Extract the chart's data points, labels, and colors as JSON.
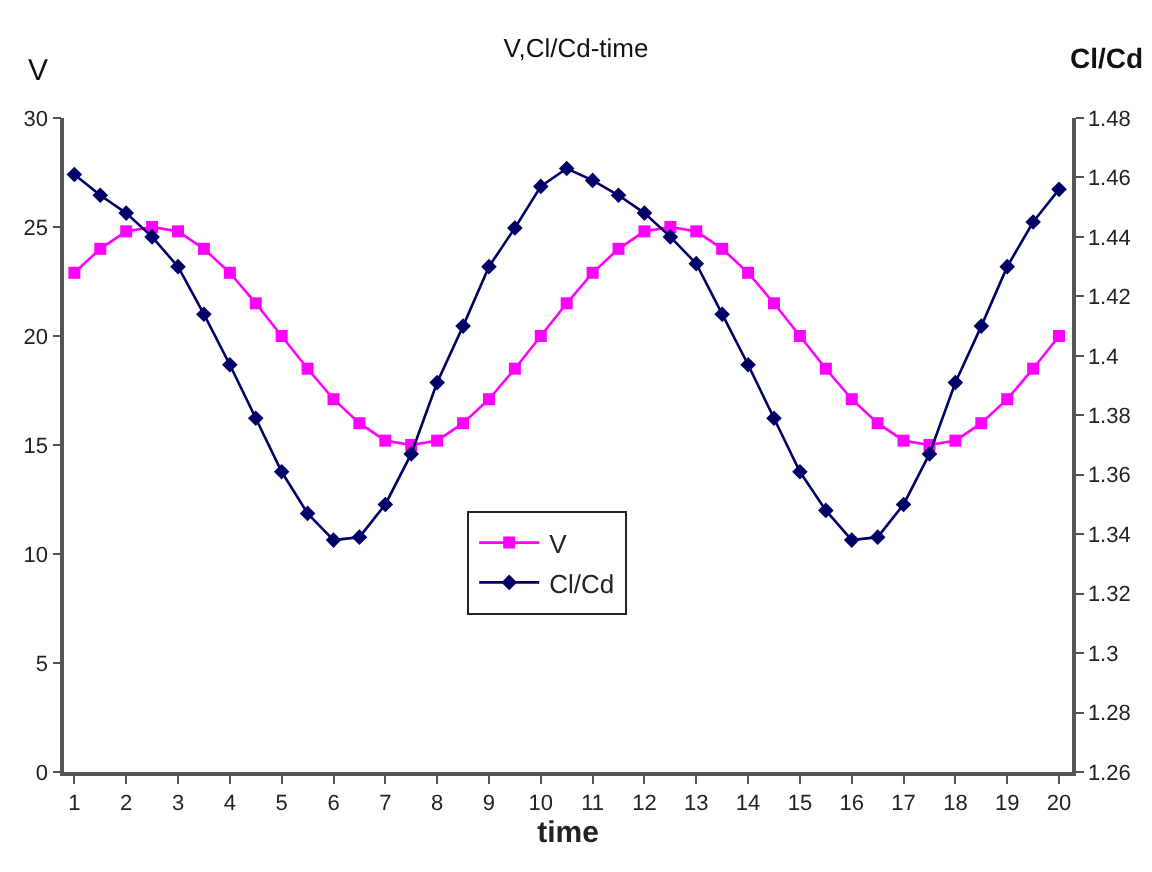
{
  "chart_data": {
    "type": "line",
    "title": "V,Cl/Cd-time",
    "xlabel": "time",
    "ylabel": "V",
    "y2label": "Cl/Cd",
    "x": [
      1,
      1.5,
      2,
      2.5,
      3,
      3.5,
      4,
      4.5,
      5,
      5.5,
      6,
      6.5,
      7,
      7.5,
      8,
      8.5,
      9,
      9.5,
      10,
      10.5,
      11,
      11.5,
      12,
      12.5,
      13,
      13.5,
      14,
      14.5,
      15,
      15.5,
      16,
      16.5,
      17,
      17.5,
      18,
      18.5,
      19,
      19.5,
      20
    ],
    "series": [
      {
        "name": "V",
        "color": "#ff00ff",
        "marker": "square",
        "values": [
          22.9,
          24.0,
          24.8,
          25.0,
          24.8,
          24.0,
          22.9,
          21.5,
          20.0,
          18.5,
          17.1,
          16.0,
          15.2,
          15.0,
          15.2,
          16.0,
          17.1,
          18.5,
          20.0,
          21.5,
          22.9,
          24.0,
          24.8,
          25.0,
          24.8,
          24.0,
          22.9,
          21.5,
          20.0,
          18.5,
          17.1,
          16.0,
          15.2,
          15.0,
          15.2,
          16.0,
          17.1,
          18.5,
          20.0
        ]
      },
      {
        "name": "Cl/Cd",
        "color": "#000066",
        "marker": "diamond",
        "axis": "y2",
        "values": [
          1.461,
          1.454,
          1.448,
          1.44,
          1.43,
          1.414,
          1.397,
          1.379,
          1.361,
          1.347,
          1.338,
          1.339,
          1.35,
          1.367,
          1.391,
          1.41,
          1.43,
          1.443,
          1.457,
          1.463,
          1.459,
          1.454,
          1.448,
          1.44,
          1.431,
          1.414,
          1.397,
          1.379,
          1.361,
          1.348,
          1.338,
          1.339,
          1.35,
          1.367,
          1.391,
          1.41,
          1.43,
          1.445,
          1.456
        ]
      }
    ],
    "xlim": [
      0.8,
      20.25
    ],
    "xticks": [
      1,
      2,
      3,
      4,
      5,
      6,
      7,
      8,
      9,
      10,
      11,
      12,
      13,
      14,
      15,
      16,
      17,
      18,
      19,
      20
    ],
    "ylim": [
      0,
      30
    ],
    "yticks": [
      0,
      5,
      10,
      15,
      20,
      25,
      30
    ],
    "y2lim": [
      1.26,
      1.48
    ],
    "y2ticks": [
      1.26,
      1.28,
      1.3,
      1.32,
      1.34,
      1.36,
      1.38,
      1.4,
      1.42,
      1.44,
      1.46,
      1.48
    ],
    "legend": "center",
    "line_style": "solid"
  }
}
